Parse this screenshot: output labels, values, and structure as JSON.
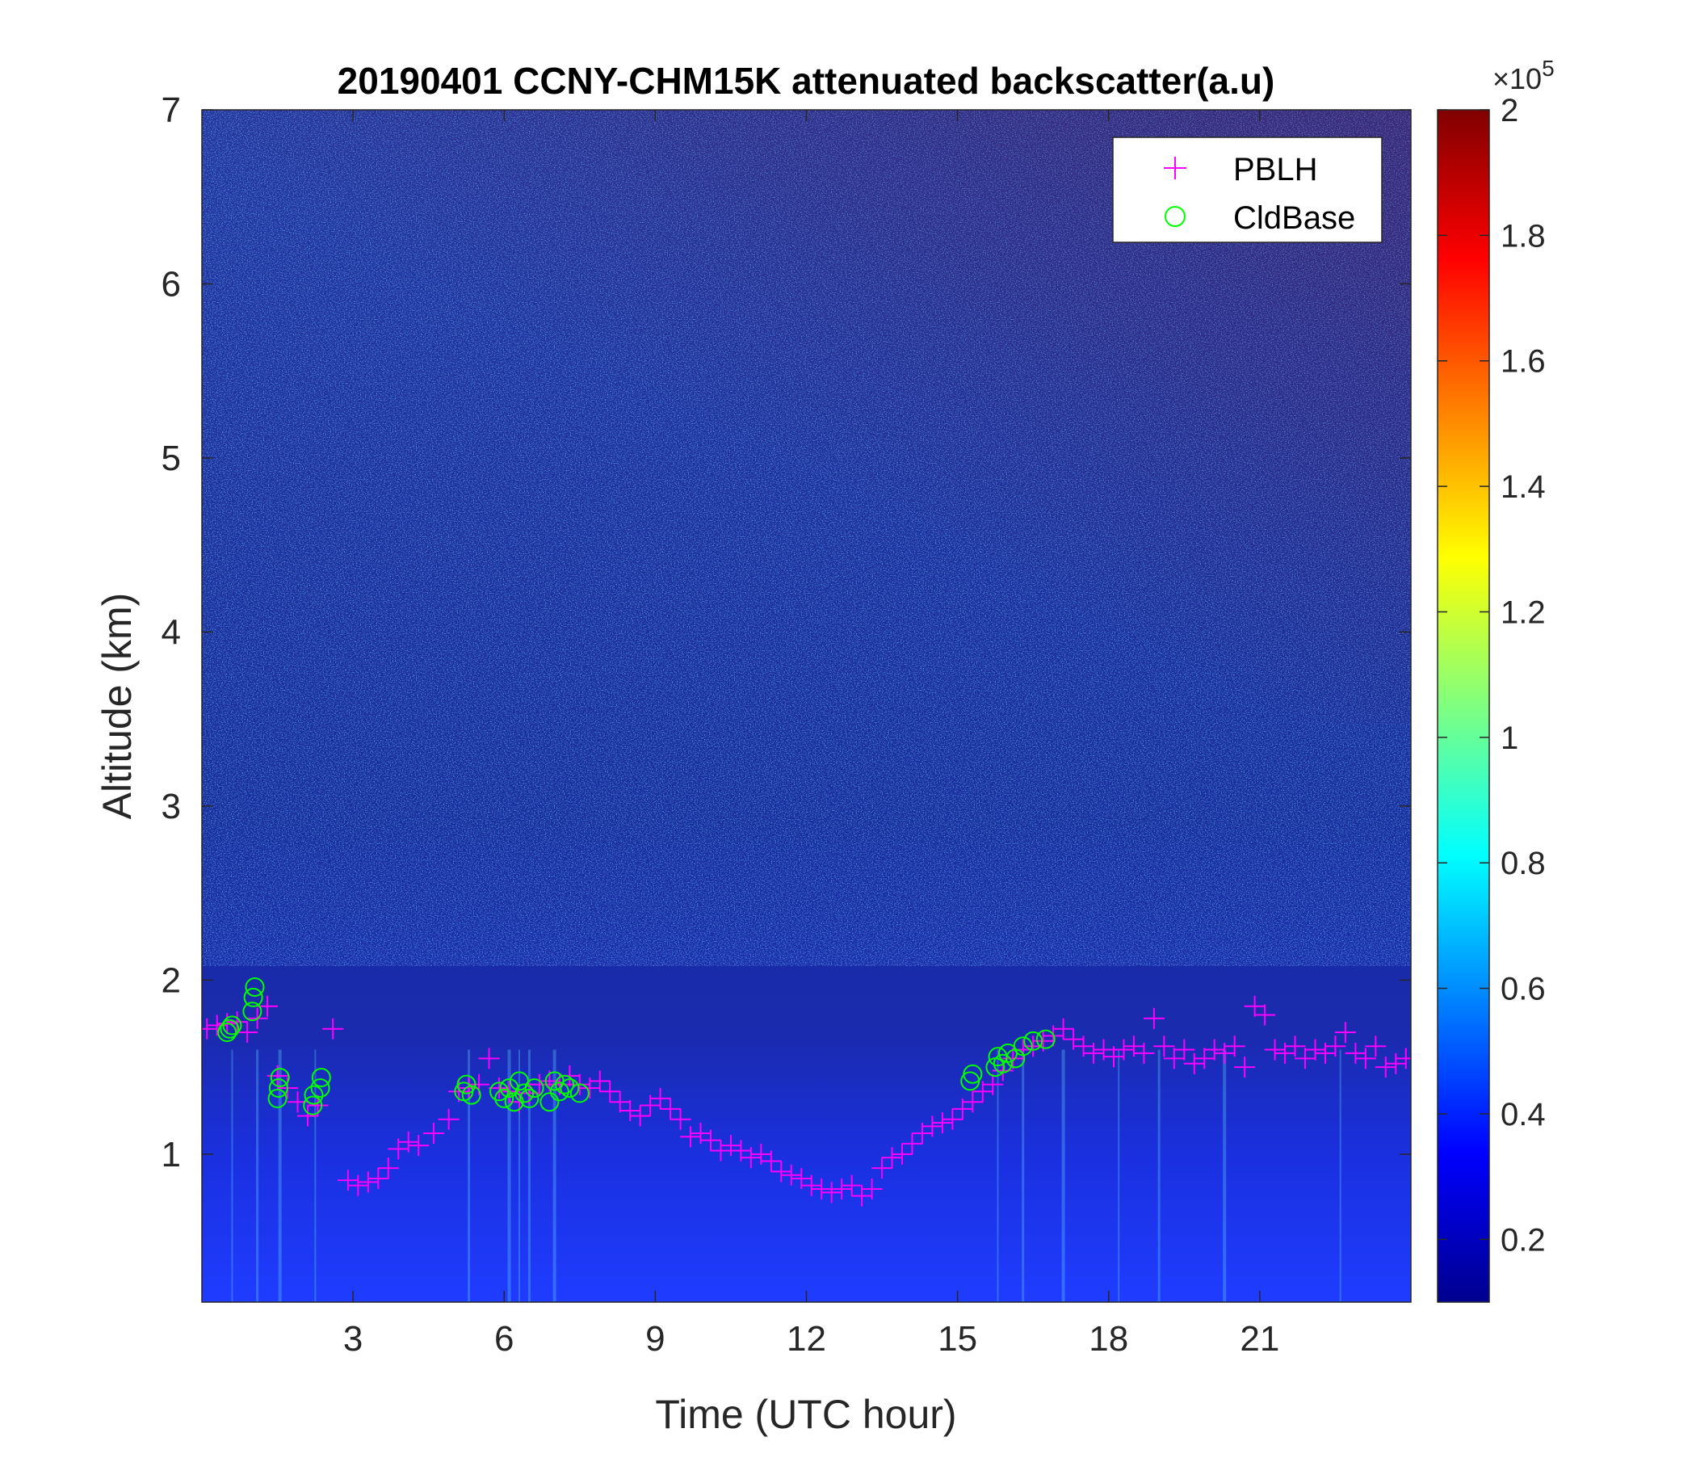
{
  "chart_data": {
    "type": "heatmap",
    "title": "20190401 CCNY-CHM15K attenuated backscatter(a.u)",
    "xlabel": "Time (UTC hour)",
    "ylabel": "Altitude (km)",
    "xlim": [
      0,
      24
    ],
    "ylim": [
      0.15,
      7
    ],
    "xticks": [
      3,
      6,
      9,
      12,
      15,
      18,
      21
    ],
    "xtick_labels": [
      "3",
      "6",
      "9",
      "12",
      "15",
      "18",
      "21"
    ],
    "yticks": [
      1,
      2,
      3,
      4,
      5,
      6,
      7
    ],
    "ytick_labels": [
      "1",
      "2",
      "3",
      "4",
      "5",
      "6",
      "7"
    ],
    "colorbar": {
      "min": 0.1,
      "max": 2,
      "ticks": [
        0.2,
        0.4,
        0.6,
        0.8,
        1,
        1.2,
        1.4,
        1.6,
        1.8,
        2
      ],
      "tick_labels": [
        "0.2",
        "0.4",
        "0.6",
        "0.8",
        "1",
        "1.2",
        "1.4",
        "1.6",
        "1.8",
        "2"
      ],
      "multiplier_base": "×10",
      "multiplier_exponent": "5",
      "colormap": "jet"
    },
    "legend": {
      "placement": "top-right",
      "entries": [
        {
          "name": "PBLH",
          "marker": "+",
          "color": "#ff00ff"
        },
        {
          "name": "CldBase",
          "marker": "o",
          "color": "#00ff00"
        }
      ]
    },
    "series": [
      {
        "name": "PBLH",
        "marker": "+",
        "color": "#ff00ff",
        "x": [
          0.1,
          0.3,
          0.5,
          0.7,
          0.9,
          1.1,
          1.3,
          1.5,
          1.7,
          1.9,
          2.1,
          2.3,
          2.6,
          2.9,
          3.1,
          3.3,
          3.5,
          3.7,
          3.9,
          4.1,
          4.3,
          4.6,
          4.9,
          5.1,
          5.3,
          5.5,
          5.7,
          5.9,
          6.1,
          6.3,
          6.5,
          6.7,
          6.9,
          7.1,
          7.3,
          7.5,
          7.7,
          7.9,
          8.1,
          8.3,
          8.5,
          8.7,
          8.9,
          9.1,
          9.3,
          9.5,
          9.7,
          9.9,
          10.1,
          10.3,
          10.5,
          10.7,
          10.9,
          11.1,
          11.3,
          11.5,
          11.7,
          11.9,
          12.1,
          12.3,
          12.5,
          12.7,
          12.9,
          13.1,
          13.3,
          13.5,
          13.7,
          13.9,
          14.1,
          14.3,
          14.5,
          14.7,
          14.9,
          15.1,
          15.3,
          15.5,
          15.7,
          15.9,
          16.1,
          16.3,
          16.5,
          16.7,
          16.9,
          17.1,
          17.3,
          17.5,
          17.7,
          17.9,
          18.1,
          18.3,
          18.5,
          18.7,
          18.9,
          19.1,
          19.3,
          19.5,
          19.7,
          19.9,
          20.1,
          20.3,
          20.5,
          20.7,
          20.9,
          21.1,
          21.3,
          21.5,
          21.7,
          21.9,
          22.1,
          22.3,
          22.5,
          22.7,
          22.9,
          23.1,
          23.3,
          23.5,
          23.7,
          23.9
        ],
        "y": [
          1.72,
          1.74,
          1.75,
          1.76,
          1.7,
          1.78,
          1.85,
          1.45,
          1.38,
          1.3,
          1.22,
          1.28,
          1.72,
          0.85,
          0.82,
          0.84,
          0.86,
          0.92,
          1.03,
          1.07,
          1.05,
          1.12,
          1.2,
          1.36,
          1.38,
          1.4,
          1.55,
          1.38,
          1.36,
          1.3,
          1.35,
          1.4,
          1.42,
          1.4,
          1.45,
          1.4,
          1.38,
          1.42,
          1.36,
          1.3,
          1.25,
          1.22,
          1.28,
          1.32,
          1.26,
          1.2,
          1.1,
          1.12,
          1.08,
          1.02,
          1.05,
          1.02,
          0.98,
          1.0,
          0.96,
          0.9,
          0.88,
          0.86,
          0.82,
          0.8,
          0.78,
          0.8,
          0.82,
          0.76,
          0.8,
          0.92,
          0.98,
          1.0,
          1.06,
          1.12,
          1.16,
          1.18,
          1.2,
          1.26,
          1.3,
          1.36,
          1.4,
          1.48,
          1.55,
          1.6,
          1.62,
          1.65,
          1.68,
          1.72,
          1.66,
          1.62,
          1.58,
          1.6,
          1.56,
          1.6,
          1.62,
          1.58,
          1.78,
          1.62,
          1.55,
          1.6,
          1.52,
          1.55,
          1.6,
          1.58,
          1.62,
          1.5,
          1.85,
          1.8,
          1.6,
          1.58,
          1.62,
          1.55,
          1.6,
          1.58,
          1.62,
          1.7,
          1.58,
          1.55,
          1.62,
          1.5,
          1.52,
          1.55
        ]
      },
      {
        "name": "CldBase",
        "marker": "o",
        "color": "#00ff00",
        "x": [
          0.5,
          0.55,
          0.6,
          1.0,
          1.02,
          1.05,
          1.5,
          1.52,
          1.55,
          2.2,
          2.22,
          2.35,
          2.37,
          5.2,
          5.25,
          5.35,
          5.9,
          6.0,
          6.1,
          6.2,
          6.3,
          6.4,
          6.5,
          6.6,
          6.9,
          7.0,
          7.1,
          7.2,
          7.3,
          7.5,
          15.25,
          15.3,
          15.75,
          15.8,
          15.9,
          16.0,
          16.15,
          16.3,
          16.5,
          16.75
        ],
        "y": [
          1.7,
          1.72,
          1.74,
          1.82,
          1.9,
          1.96,
          1.32,
          1.38,
          1.44,
          1.28,
          1.34,
          1.38,
          1.44,
          1.36,
          1.4,
          1.34,
          1.36,
          1.32,
          1.38,
          1.3,
          1.42,
          1.35,
          1.32,
          1.38,
          1.3,
          1.42,
          1.36,
          1.4,
          1.38,
          1.35,
          1.42,
          1.46,
          1.5,
          1.56,
          1.52,
          1.58,
          1.55,
          1.62,
          1.65,
          1.66
        ]
      }
    ]
  }
}
